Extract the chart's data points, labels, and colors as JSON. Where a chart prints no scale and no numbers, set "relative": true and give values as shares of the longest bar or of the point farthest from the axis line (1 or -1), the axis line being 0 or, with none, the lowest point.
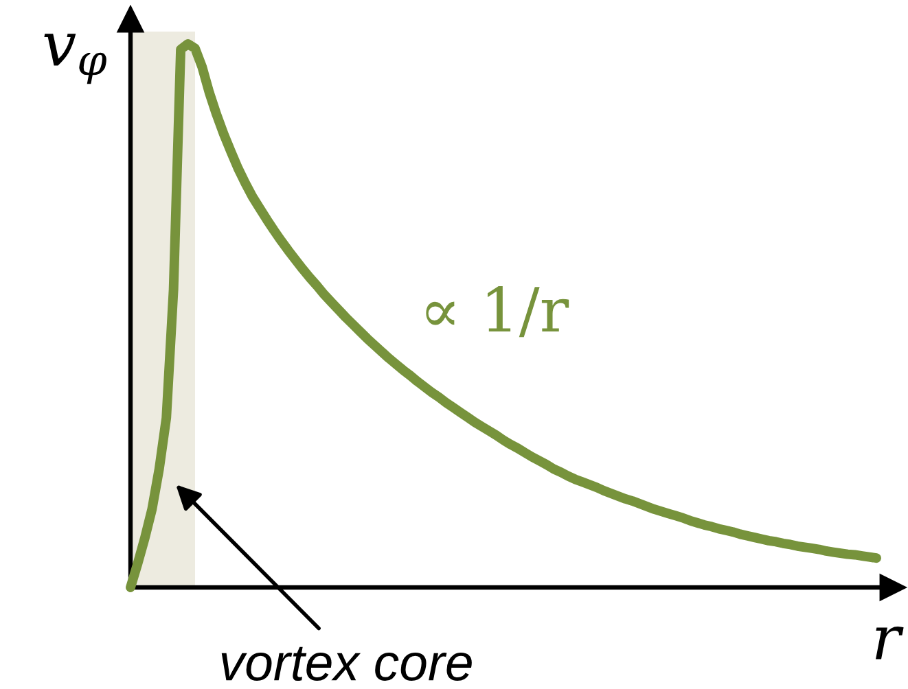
{
  "chart_data": {
    "type": "line",
    "relative": true,
    "xlabel": "r",
    "ylabel": "v$_{φ}$",
    "line_style": "solid",
    "categories": [
      null,
      null,
      null,
      null,
      null,
      null,
      null,
      null,
      null,
      null,
      null,
      null,
      null,
      null,
      null,
      null,
      null,
      null,
      null,
      null,
      null,
      null,
      null,
      null,
      null,
      null,
      null,
      null,
      null,
      null,
      null,
      null,
      null,
      null,
      null,
      null,
      null,
      null,
      null,
      null,
      null,
      null,
      null,
      null,
      null,
      null,
      null,
      null,
      null,
      null,
      null,
      null,
      null,
      null,
      null,
      null,
      null,
      null,
      null,
      null,
      null,
      null,
      null,
      null,
      null,
      null,
      null,
      null,
      null,
      null,
      null,
      null,
      null,
      null,
      null,
      null,
      null,
      null,
      null,
      null,
      null,
      null,
      null,
      null,
      null,
      null,
      null,
      null,
      null,
      null,
      null,
      null,
      null,
      null,
      null,
      null,
      null,
      null,
      null,
      null,
      null,
      null,
      null,
      null,
      null
    ],
    "series": [
      {
        "name": "∝ 1/r",
        "color": "#77933c",
        "values": [
          0,
          0.044,
          0.091,
          0.144,
          0.218,
          0.312,
          0.548,
          0.99,
          1.0,
          0.992,
          0.957,
          0.91,
          0.87,
          0.834,
          0.802,
          0.771,
          0.744,
          0.719,
          0.698,
          0.677,
          0.657,
          0.638,
          0.62,
          0.603,
          0.586,
          0.57,
          0.555,
          0.539,
          0.525,
          0.511,
          0.497,
          0.484,
          0.471,
          0.458,
          0.446,
          0.434,
          0.422,
          0.411,
          0.4,
          0.39,
          0.379,
          0.369,
          0.359,
          0.35,
          0.34,
          0.331,
          0.322,
          0.313,
          0.304,
          0.296,
          0.288,
          0.28,
          0.271,
          0.263,
          0.256,
          0.248,
          0.24,
          0.233,
          0.226,
          0.218,
          0.212,
          0.205,
          0.199,
          0.194,
          0.189,
          0.184,
          0.178,
          0.173,
          0.168,
          0.163,
          0.159,
          0.154,
          0.149,
          0.144,
          0.14,
          0.136,
          0.132,
          0.128,
          0.123,
          0.119,
          0.115,
          0.112,
          0.108,
          0.105,
          0.102,
          0.098,
          0.095,
          0.092,
          0.089,
          0.086,
          0.084,
          0.081,
          0.079,
          0.076,
          0.074,
          0.072,
          0.07,
          0.067,
          0.065,
          0.063,
          0.061,
          0.06,
          0.058,
          0.056,
          0.054
        ]
      }
    ],
    "annotations": [
      "vortex core"
    ]
  }
}
